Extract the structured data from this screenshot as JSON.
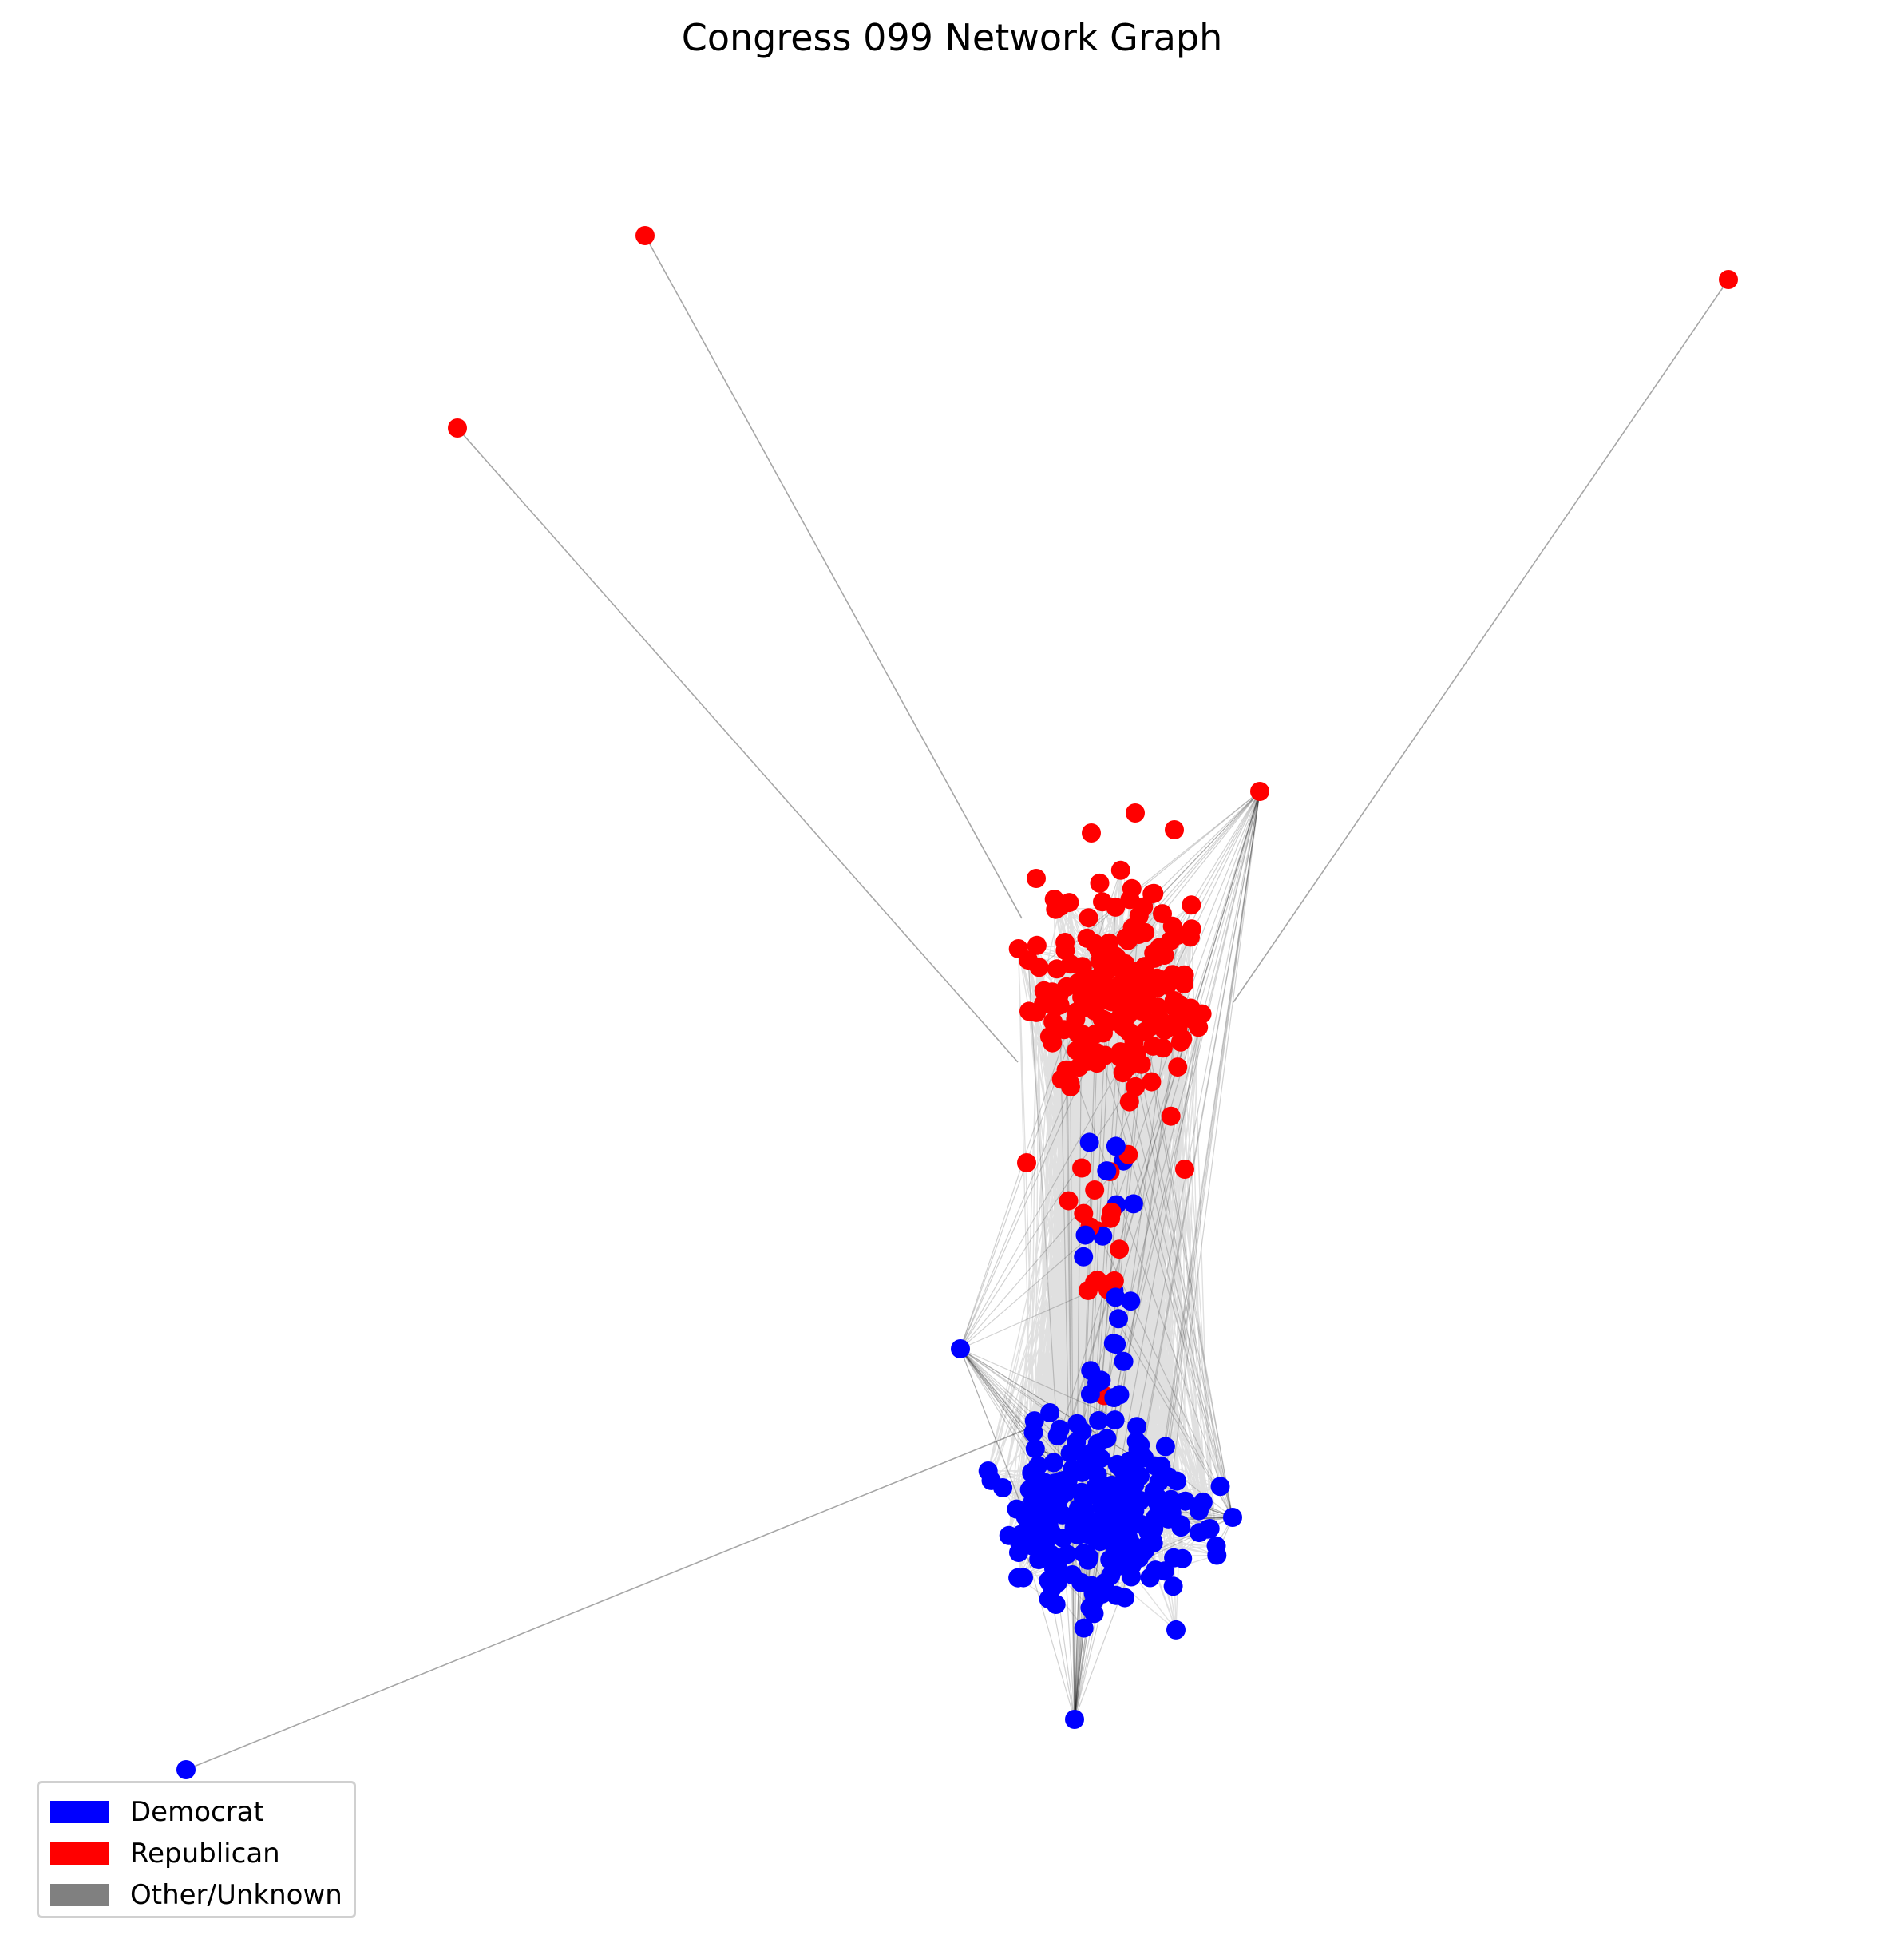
{
  "title": "Congress 099 Network Graph",
  "legend": [
    {
      "label": "Democrat",
      "color": "#0000ff"
    },
    {
      "label": "Republican",
      "color": "#ff0000"
    },
    {
      "label": "Other/Unknown",
      "color": "#808080"
    }
  ],
  "colors": {
    "democrat": "#0000ff",
    "republican": "#ff0000",
    "edge": "#000000"
  },
  "graph": {
    "layout": "force-directed",
    "node_shape": "circle",
    "edge_style": "thin translucent black lines"
  }
}
